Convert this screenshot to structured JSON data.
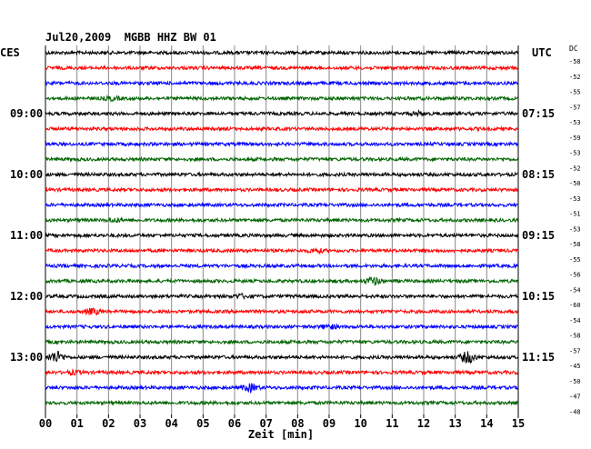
{
  "chart_data": {
    "type": "line",
    "title": "Jul20,2009  MGBB HHZ BW 01",
    "left_timezone": "CES",
    "right_timezone": "UTC",
    "dc_label": "DC",
    "xlabel": "Zeit [min]",
    "x_ticks": [
      "00",
      "01",
      "02",
      "03",
      "04",
      "05",
      "06",
      "07",
      "08",
      "09",
      "10",
      "11",
      "12",
      "13",
      "14",
      "15"
    ],
    "xlim": [
      0,
      15
    ],
    "grid": true,
    "trace_colors": [
      "#000000",
      "#ff0000",
      "#0000ff",
      "#006400"
    ],
    "left_hour_labels": [
      {
        "trace": 4,
        "text": "09:00"
      },
      {
        "trace": 8,
        "text": "10:00"
      },
      {
        "trace": 12,
        "text": "11:00"
      },
      {
        "trace": 16,
        "text": "12:00"
      },
      {
        "trace": 20,
        "text": "13:00"
      }
    ],
    "right_hour_labels": [
      {
        "trace": 4,
        "text": "07:15"
      },
      {
        "trace": 8,
        "text": "08:15"
      },
      {
        "trace": 12,
        "text": "09:15"
      },
      {
        "trace": 16,
        "text": "10:15"
      },
      {
        "trace": 20,
        "text": "11:15"
      }
    ],
    "dc_offsets": [
      -58,
      -52,
      -55,
      -57,
      -53,
      -59,
      -53,
      -52,
      -50,
      -53,
      -51,
      -53,
      -58,
      -55,
      -56,
      -54,
      -60,
      -54,
      -58,
      -57,
      -45,
      -50,
      -47,
      -48
    ],
    "events": [
      {
        "trace": 3,
        "minute": 2.1,
        "amp": 1.6
      },
      {
        "trace": 4,
        "minute": 11.8,
        "amp": 1.6
      },
      {
        "trace": 11,
        "minute": 2.2,
        "amp": 1.6
      },
      {
        "trace": 13,
        "minute": 8.6,
        "amp": 2.0
      },
      {
        "trace": 15,
        "minute": 10.4,
        "amp": 4.0
      },
      {
        "trace": 16,
        "minute": 6.2,
        "amp": 1.8
      },
      {
        "trace": 17,
        "minute": 1.5,
        "amp": 3.0
      },
      {
        "trace": 18,
        "minute": 9.0,
        "amp": 2.2
      },
      {
        "trace": 20,
        "minute": 0.35,
        "amp": 6.0
      },
      {
        "trace": 20,
        "minute": 13.4,
        "amp": 6.0
      },
      {
        "trace": 21,
        "minute": 0.9,
        "amp": 1.6
      },
      {
        "trace": 22,
        "minute": 6.5,
        "amp": 4.0
      }
    ]
  }
}
